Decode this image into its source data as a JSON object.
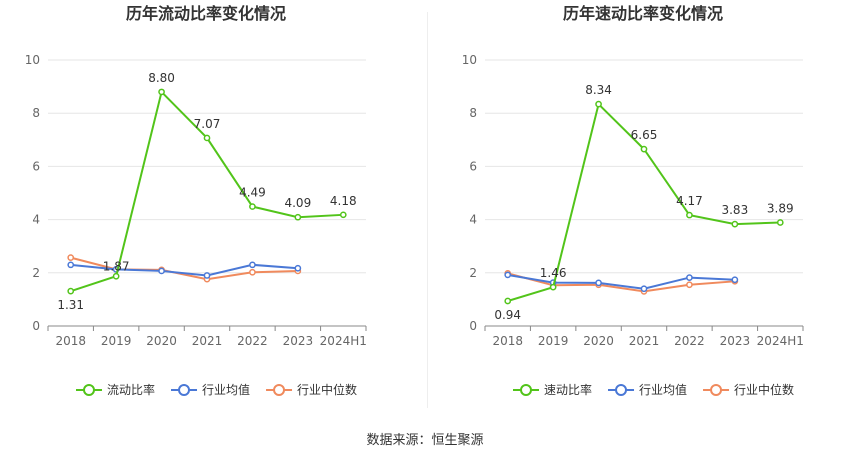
{
  "source_label": "数据来源：恒生聚源",
  "chart_data": [
    {
      "type": "line",
      "title": "历年流动比率变化情况",
      "categories": [
        "2018",
        "2019",
        "2020",
        "2021",
        "2022",
        "2023",
        "2024H1"
      ],
      "ylim": [
        0,
        10
      ],
      "yticks": [
        0,
        2,
        4,
        6,
        8,
        10
      ],
      "grid": true,
      "legend_position": "bottom-center",
      "series": [
        {
          "name": "流动比率",
          "color": "#52c41a",
          "labeled": true,
          "values": [
            1.31,
            1.87,
            8.8,
            7.07,
            4.49,
            4.09,
            4.18
          ],
          "labels": [
            "1.31",
            "1.87",
            "8.80",
            "7.07",
            "4.49",
            "4.09",
            "4.18"
          ]
        },
        {
          "name": "行业均值",
          "color": "#4a78d6",
          "labeled": false,
          "values": [
            2.3,
            2.13,
            2.07,
            1.9,
            2.3,
            2.17,
            null
          ]
        },
        {
          "name": "行业中位数",
          "color": "#f08a5d",
          "labeled": false,
          "values": [
            2.57,
            2.13,
            2.11,
            1.76,
            2.02,
            2.07,
            null
          ]
        }
      ]
    },
    {
      "type": "line",
      "title": "历年速动比率变化情况",
      "categories": [
        "2018",
        "2019",
        "2020",
        "2021",
        "2022",
        "2023",
        "2024H1"
      ],
      "ylim": [
        0,
        10
      ],
      "yticks": [
        0,
        2,
        4,
        6,
        8,
        10
      ],
      "grid": true,
      "legend_position": "bottom-center",
      "series": [
        {
          "name": "速动比率",
          "color": "#52c41a",
          "labeled": true,
          "values": [
            0.94,
            1.46,
            8.34,
            6.65,
            4.17,
            3.83,
            3.89
          ],
          "labels": [
            "0.94",
            "1.46",
            "8.34",
            "6.65",
            "4.17",
            "3.83",
            "3.89"
          ]
        },
        {
          "name": "行业均值",
          "color": "#4a78d6",
          "labeled": false,
          "values": [
            1.92,
            1.63,
            1.62,
            1.4,
            1.82,
            1.74,
            null
          ]
        },
        {
          "name": "行业中位数",
          "color": "#f08a5d",
          "labeled": false,
          "values": [
            1.98,
            1.53,
            1.55,
            1.3,
            1.55,
            1.68,
            null
          ]
        }
      ]
    }
  ]
}
